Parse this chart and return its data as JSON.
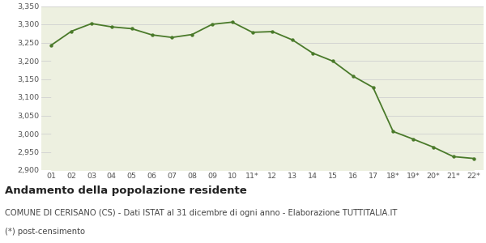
{
  "x_labels": [
    "01",
    "02",
    "03",
    "04",
    "05",
    "06",
    "07",
    "08",
    "09",
    "10",
    "11*",
    "12",
    "13",
    "14",
    "15",
    "16",
    "17",
    "18*",
    "19*",
    "20*",
    "21*",
    "22*"
  ],
  "values": [
    3243,
    3281,
    3302,
    3293,
    3288,
    3271,
    3264,
    3272,
    3300,
    3306,
    3278,
    3280,
    3257,
    3221,
    3199,
    3158,
    3127,
    3006,
    2985,
    2963,
    2937,
    2932
  ],
  "line_color": "#4a7a2a",
  "fill_color": "#edf0e0",
  "marker_color": "#4a7a2a",
  "background_color": "#ffffff",
  "grid_color": "#d0d0d0",
  "ylim": [
    2900,
    3350
  ],
  "yticks": [
    2900,
    2950,
    3000,
    3050,
    3100,
    3150,
    3200,
    3250,
    3300,
    3350
  ],
  "title": "Andamento della popolazione residente",
  "subtitle": "COMUNE DI CERISANO (CS) - Dati ISTAT al 31 dicembre di ogni anno - Elaborazione TUTTITALIA.IT",
  "footnote": "(*) post-censimento",
  "title_fontsize": 9.5,
  "subtitle_fontsize": 7.2,
  "footnote_fontsize": 7.2,
  "tick_fontsize": 6.8
}
